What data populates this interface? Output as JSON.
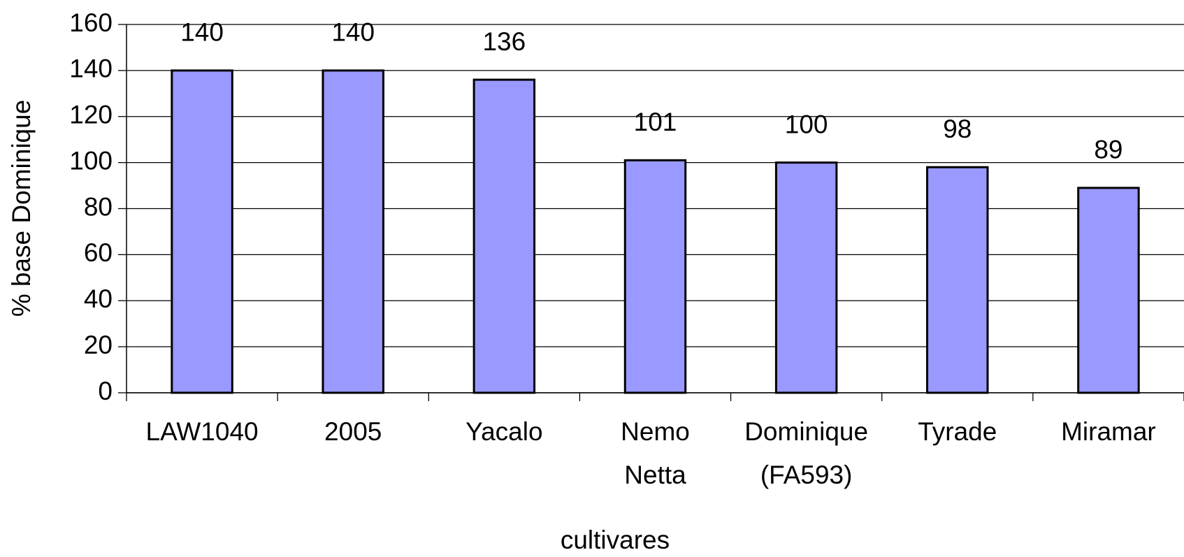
{
  "chart_data": {
    "type": "bar",
    "x_label": "cultivares",
    "y_label": "% base Dominique",
    "categories": [
      "LAW1040",
      "2005",
      "Yacalo",
      "Nemo Netta",
      "Dominique (FA593)",
      "Tyrade",
      "Miramar"
    ],
    "values": [
      140,
      140,
      136,
      101,
      100,
      98,
      89
    ],
    "color": "#9999ff",
    "ylim": [
      0,
      160
    ],
    "yticks": [
      0,
      20,
      40,
      60,
      80,
      100,
      120,
      140,
      160
    ],
    "grid": true
  }
}
